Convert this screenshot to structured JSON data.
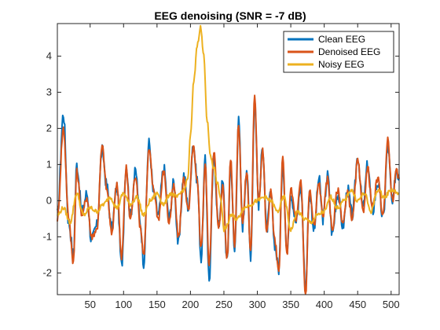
{
  "chart_data": {
    "type": "line",
    "title": "EEG denoising (SNR = -7 dB)",
    "xlabel": "",
    "ylabel": "",
    "xlim": [
      1,
      512
    ],
    "ylim": [
      -2.6,
      4.9
    ],
    "xticks": [
      50,
      100,
      150,
      200,
      250,
      300,
      350,
      400,
      450,
      500
    ],
    "yticks": [
      -2,
      -1,
      0,
      1,
      2,
      3,
      4
    ],
    "legend_position": "top-right",
    "grid": false,
    "series": [
      {
        "name": "Clean EEG",
        "color": "#0072BD",
        "x": [
          1,
          10,
          18,
          25,
          30,
          38,
          45,
          52,
          60,
          68,
          75,
          82,
          90,
          97,
          104,
          110,
          118,
          125,
          130,
          138,
          145,
          152,
          160,
          168,
          175,
          182,
          190,
          197,
          204,
          210,
          216,
          222,
          228,
          235,
          242,
          248,
          255,
          260,
          266,
          272,
          278,
          284,
          290,
          296,
          302,
          308,
          314,
          320,
          326,
          332,
          338,
          344,
          350,
          358,
          365,
          372,
          378,
          385,
          392,
          398,
          405,
          412,
          420,
          428,
          435,
          442,
          450,
          458,
          465,
          472,
          480,
          488,
          495,
          502,
          508,
          512
        ],
        "y": [
          -0.4,
          2.4,
          -0.6,
          -1.5,
          1.0,
          -0.3,
          0.2,
          -1.1,
          -0.7,
          1.4,
          0.4,
          -0.8,
          0.4,
          -1.8,
          1.0,
          -0.4,
          0.8,
          -0.6,
          -1.7,
          1.6,
          0.2,
          -0.4,
          0.9,
          -0.5,
          0.5,
          -1.2,
          0.7,
          -0.2,
          1.6,
          0.6,
          -1.6,
          1.1,
          -2.2,
          1.2,
          -0.7,
          0.5,
          -1.7,
          1.1,
          -1.4,
          2.2,
          -0.7,
          0.9,
          -1.5,
          2.8,
          -0.1,
          1.5,
          -0.8,
          0.2,
          -1.2,
          -1.9,
          1.1,
          -1.4,
          0.2,
          -0.6,
          0.4,
          -2.4,
          0.2,
          -0.8,
          0.6,
          -0.5,
          0.7,
          -0.9,
          0.2,
          -0.7,
          0.3,
          -0.4,
          1.2,
          -0.2,
          1.0,
          -0.3,
          0.5,
          -0.5,
          1.5,
          -0.1,
          0.9,
          0.6
        ]
      },
      {
        "name": "Denoised EEG",
        "color": "#D95319",
        "x": [
          1,
          10,
          18,
          25,
          30,
          38,
          45,
          52,
          60,
          68,
          75,
          82,
          90,
          97,
          104,
          110,
          118,
          125,
          130,
          138,
          145,
          152,
          160,
          168,
          175,
          182,
          190,
          197,
          204,
          210,
          216,
          222,
          228,
          235,
          242,
          248,
          255,
          260,
          266,
          272,
          278,
          284,
          290,
          296,
          302,
          308,
          314,
          320,
          326,
          332,
          338,
          344,
          350,
          358,
          365,
          372,
          378,
          385,
          392,
          398,
          405,
          412,
          420,
          428,
          435,
          442,
          450,
          458,
          465,
          472,
          480,
          488,
          495,
          502,
          508,
          512
        ],
        "y": [
          -0.5,
          2.0,
          -0.5,
          -1.7,
          0.8,
          -0.4,
          0.1,
          -1.0,
          -0.8,
          1.5,
          0.3,
          -0.9,
          0.5,
          -1.6,
          0.9,
          -0.5,
          0.7,
          -0.7,
          -1.5,
          1.4,
          0.3,
          -0.5,
          0.8,
          -0.6,
          0.4,
          -1.0,
          0.6,
          -0.3,
          1.5,
          0.5,
          -1.3,
          1.0,
          -1.8,
          1.4,
          -0.8,
          0.4,
          -1.6,
          1.2,
          -1.2,
          2.1,
          -0.6,
          0.8,
          -1.4,
          2.9,
          0.0,
          1.4,
          -0.9,
          0.3,
          -1.1,
          -2.0,
          1.2,
          -1.5,
          0.3,
          -0.5,
          0.5,
          -2.6,
          0.3,
          -0.7,
          0.5,
          -0.4,
          0.6,
          -0.8,
          0.3,
          -0.6,
          0.2,
          -0.5,
          1.1,
          -0.3,
          0.9,
          -0.2,
          0.6,
          -0.4,
          1.7,
          0.0,
          0.8,
          0.6
        ]
      },
      {
        "name": "Noisy EEG",
        "color": "#EDB120",
        "x": [
          1,
          10,
          20,
          30,
          40,
          50,
          60,
          70,
          80,
          90,
          100,
          110,
          120,
          130,
          140,
          150,
          160,
          170,
          180,
          190,
          196,
          200,
          205,
          210,
          215,
          220,
          225,
          230,
          235,
          240,
          245,
          250,
          255,
          260,
          270,
          280,
          290,
          300,
          310,
          320,
          330,
          340,
          350,
          360,
          370,
          380,
          390,
          400,
          410,
          420,
          430,
          440,
          450,
          460,
          470,
          480,
          490,
          500,
          512
        ],
        "y": [
          -0.4,
          -0.2,
          -0.6,
          0.2,
          -0.4,
          -0.2,
          -0.3,
          -0.1,
          0.1,
          -0.2,
          0.2,
          -0.1,
          0.1,
          -0.4,
          0.0,
          0.2,
          -0.1,
          0.2,
          0.1,
          0.3,
          0.6,
          1.8,
          3.3,
          4.3,
          4.8,
          4.0,
          2.2,
          1.2,
          0.9,
          0.5,
          0.1,
          -0.8,
          -0.7,
          -0.4,
          -0.5,
          -0.2,
          -0.1,
          0.0,
          0.1,
          0.0,
          -0.3,
          0.1,
          -0.8,
          -0.3,
          -0.5,
          -0.6,
          -0.4,
          -0.3,
          0.1,
          -0.2,
          0.0,
          0.3,
          0.0,
          0.2,
          -0.3,
          0.3,
          0.1,
          0.3,
          0.2
        ]
      }
    ]
  }
}
